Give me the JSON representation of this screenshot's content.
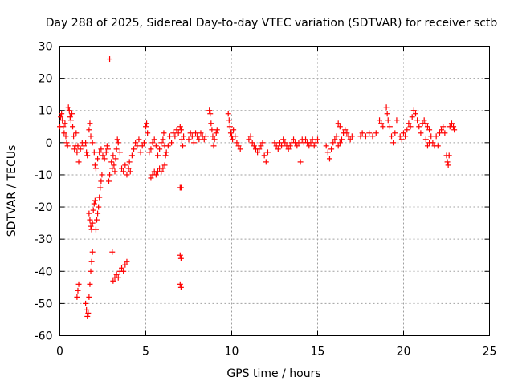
{
  "chart_data": {
    "type": "scatter",
    "title": "Day 288 of 2025, Sidereal Day-to-day VTEC variation (SDTVAR) for receiver sctb",
    "xlabel": "GPS time / hours",
    "ylabel": "SDTVAR / TECUs",
    "xlim": [
      0,
      25
    ],
    "ylim": [
      -60,
      30
    ],
    "xticks": [
      0,
      5,
      10,
      15,
      20,
      25
    ],
    "yticks": [
      -60,
      -50,
      -40,
      -30,
      -20,
      -10,
      0,
      10,
      20,
      30
    ],
    "xtick_labels": [
      "0",
      "5",
      "10",
      "15",
      "20",
      "25"
    ],
    "ytick_labels": [
      "-60",
      "-50",
      "-40",
      "-30",
      "-20",
      "-10",
      "0",
      "10",
      "20",
      "30"
    ],
    "grid": true,
    "marker": "+",
    "marker_color": "#ff0000",
    "series": [
      {
        "name": "SDTVAR",
        "points": [
          [
            0.0,
            5
          ],
          [
            0.05,
            8
          ],
          [
            0.1,
            9
          ],
          [
            0.15,
            7
          ],
          [
            0.2,
            5
          ],
          [
            0.25,
            3
          ],
          [
            0.3,
            6
          ],
          [
            0.35,
            2
          ],
          [
            0.4,
            0
          ],
          [
            0.45,
            -1
          ],
          [
            0.5,
            11
          ],
          [
            0.55,
            10
          ],
          [
            0.6,
            8
          ],
          [
            0.65,
            7
          ],
          [
            0.7,
            9
          ],
          [
            0.75,
            5
          ],
          [
            0.8,
            2
          ],
          [
            0.85,
            -2
          ],
          [
            0.9,
            -1
          ],
          [
            0.95,
            3
          ],
          [
            1.0,
            -3
          ],
          [
            1.05,
            -1
          ],
          [
            1.1,
            -6
          ],
          [
            1.2,
            -2
          ],
          [
            1.3,
            0
          ],
          [
            1.4,
            -1
          ],
          [
            1.5,
            0
          ],
          [
            1.55,
            -3
          ],
          [
            1.6,
            -4
          ],
          [
            1.0,
            -48
          ],
          [
            1.05,
            -46
          ],
          [
            1.1,
            -44
          ],
          [
            1.5,
            -50
          ],
          [
            1.55,
            -52
          ],
          [
            1.6,
            -54
          ],
          [
            1.65,
            -53
          ],
          [
            1.7,
            -48
          ],
          [
            1.75,
            -44
          ],
          [
            1.8,
            -40
          ],
          [
            1.85,
            -37
          ],
          [
            1.9,
            -34
          ],
          [
            1.7,
            -22
          ],
          [
            1.75,
            -24
          ],
          [
            1.8,
            -26
          ],
          [
            1.85,
            -27
          ],
          [
            1.9,
            -25
          ],
          [
            1.95,
            -21
          ],
          [
            2.0,
            -19
          ],
          [
            2.05,
            -18
          ],
          [
            2.1,
            -27
          ],
          [
            2.15,
            -24
          ],
          [
            2.2,
            -22
          ],
          [
            2.25,
            -20
          ],
          [
            2.3,
            -17
          ],
          [
            2.35,
            -14
          ],
          [
            2.4,
            -12
          ],
          [
            2.45,
            -10
          ],
          [
            1.7,
            4
          ],
          [
            1.75,
            6
          ],
          [
            1.8,
            2
          ],
          [
            1.9,
            0
          ],
          [
            2.0,
            -3
          ],
          [
            2.05,
            -7
          ],
          [
            2.1,
            -8
          ],
          [
            2.2,
            -5
          ],
          [
            2.3,
            -3
          ],
          [
            2.4,
            -2
          ],
          [
            2.5,
            -4
          ],
          [
            2.6,
            -5
          ],
          [
            2.7,
            -3
          ],
          [
            2.75,
            -1
          ],
          [
            2.8,
            -2
          ],
          [
            2.85,
            -12
          ],
          [
            2.9,
            -10
          ],
          [
            2.9,
            26
          ],
          [
            3.0,
            -6
          ],
          [
            3.05,
            -8
          ],
          [
            3.1,
            -4
          ],
          [
            3.15,
            -7
          ],
          [
            3.2,
            -9
          ],
          [
            3.25,
            -5
          ],
          [
            3.3,
            -2
          ],
          [
            3.35,
            1
          ],
          [
            3.4,
            0
          ],
          [
            3.5,
            -3
          ],
          [
            3.6,
            -8
          ],
          [
            3.7,
            -9
          ],
          [
            3.8,
            -7
          ],
          [
            3.9,
            -10
          ],
          [
            4.0,
            -8
          ],
          [
            4.05,
            -6
          ],
          [
            4.1,
            -9
          ],
          [
            3.05,
            -34
          ],
          [
            3.1,
            -43
          ],
          [
            3.2,
            -42
          ],
          [
            3.3,
            -41
          ],
          [
            3.4,
            -42
          ],
          [
            3.5,
            -40
          ],
          [
            3.6,
            -39
          ],
          [
            3.7,
            -40
          ],
          [
            3.8,
            -38
          ],
          [
            3.9,
            -37
          ],
          [
            4.2,
            -4
          ],
          [
            4.3,
            -2
          ],
          [
            4.4,
            0
          ],
          [
            4.5,
            -1
          ],
          [
            4.6,
            1
          ],
          [
            4.7,
            -3
          ],
          [
            4.8,
            -1
          ],
          [
            4.9,
            0
          ],
          [
            5.0,
            5
          ],
          [
            5.05,
            6
          ],
          [
            5.1,
            3
          ],
          [
            5.2,
            -3
          ],
          [
            5.3,
            -2
          ],
          [
            5.4,
            0
          ],
          [
            5.5,
            1
          ],
          [
            5.6,
            -1
          ],
          [
            5.7,
            -4
          ],
          [
            5.8,
            -2
          ],
          [
            5.9,
            0
          ],
          [
            5.3,
            -11
          ],
          [
            5.4,
            -10
          ],
          [
            5.5,
            -9
          ],
          [
            5.6,
            -10
          ],
          [
            5.7,
            -9
          ],
          [
            5.8,
            -8
          ],
          [
            5.9,
            -9
          ],
          [
            6.0,
            -8
          ],
          [
            6.1,
            -7
          ],
          [
            6.0,
            1
          ],
          [
            6.05,
            3
          ],
          [
            6.1,
            -1
          ],
          [
            6.15,
            -4
          ],
          [
            6.2,
            -3
          ],
          [
            6.3,
            -1
          ],
          [
            6.4,
            2
          ],
          [
            6.5,
            0
          ],
          [
            6.6,
            3
          ],
          [
            6.7,
            2
          ],
          [
            6.8,
            4
          ],
          [
            6.9,
            3
          ],
          [
            7.0,
            5
          ],
          [
            7.05,
            4
          ],
          [
            7.1,
            1
          ],
          [
            7.15,
            -1
          ],
          [
            7.2,
            2
          ],
          [
            7.0,
            -14
          ],
          [
            7.05,
            -14
          ],
          [
            7.0,
            -35
          ],
          [
            7.05,
            -36
          ],
          [
            7.0,
            -44
          ],
          [
            7.05,
            -45
          ],
          [
            7.5,
            1
          ],
          [
            7.6,
            3
          ],
          [
            7.7,
            2
          ],
          [
            7.8,
            0
          ],
          [
            7.9,
            3
          ],
          [
            8.0,
            2
          ],
          [
            8.1,
            1
          ],
          [
            8.2,
            3
          ],
          [
            8.3,
            2
          ],
          [
            8.4,
            1
          ],
          [
            8.5,
            2
          ],
          [
            8.7,
            10
          ],
          [
            8.75,
            9
          ],
          [
            8.8,
            6
          ],
          [
            8.85,
            4
          ],
          [
            8.9,
            2
          ],
          [
            8.95,
            -1
          ],
          [
            9.0,
            1
          ],
          [
            9.1,
            3
          ],
          [
            9.15,
            4
          ],
          [
            9.8,
            9
          ],
          [
            9.85,
            7
          ],
          [
            9.9,
            5
          ],
          [
            9.95,
            3
          ],
          [
            10.0,
            2
          ],
          [
            10.05,
            1
          ],
          [
            10.1,
            4
          ],
          [
            10.2,
            2
          ],
          [
            10.3,
            0
          ],
          [
            10.4,
            -1
          ],
          [
            10.5,
            -2
          ],
          [
            11.0,
            1
          ],
          [
            11.1,
            2
          ],
          [
            11.2,
            0
          ],
          [
            11.3,
            -1
          ],
          [
            11.4,
            -2
          ],
          [
            11.5,
            -3
          ],
          [
            11.6,
            -2
          ],
          [
            11.7,
            -1
          ],
          [
            11.8,
            0
          ],
          [
            11.9,
            -4
          ],
          [
            12.0,
            -6
          ],
          [
            12.1,
            -3
          ],
          [
            12.5,
            0
          ],
          [
            12.6,
            -1
          ],
          [
            12.7,
            -2
          ],
          [
            12.8,
            0
          ],
          [
            12.9,
            -1
          ],
          [
            13.0,
            1
          ],
          [
            13.1,
            0
          ],
          [
            13.2,
            -1
          ],
          [
            13.3,
            -2
          ],
          [
            13.4,
            -1
          ],
          [
            13.5,
            0
          ],
          [
            13.6,
            1
          ],
          [
            13.7,
            0
          ],
          [
            13.8,
            -1
          ],
          [
            13.9,
            0
          ],
          [
            14.0,
            -6
          ],
          [
            14.1,
            1
          ],
          [
            14.2,
            0
          ],
          [
            14.3,
            1
          ],
          [
            14.4,
            0
          ],
          [
            14.5,
            -1
          ],
          [
            14.6,
            0
          ],
          [
            14.7,
            1
          ],
          [
            14.8,
            -1
          ],
          [
            14.9,
            0
          ],
          [
            15.0,
            1
          ],
          [
            15.5,
            -1
          ],
          [
            15.6,
            -3
          ],
          [
            15.7,
            -5
          ],
          [
            15.8,
            -2
          ],
          [
            15.9,
            0
          ],
          [
            16.0,
            1
          ],
          [
            16.1,
            2
          ],
          [
            16.2,
            -1
          ],
          [
            16.3,
            0
          ],
          [
            16.4,
            1
          ],
          [
            16.5,
            3
          ],
          [
            16.6,
            4
          ],
          [
            16.7,
            3
          ],
          [
            16.8,
            2
          ],
          [
            16.9,
            1
          ],
          [
            17.0,
            2
          ],
          [
            16.2,
            6
          ],
          [
            16.3,
            5
          ],
          [
            17.5,
            2
          ],
          [
            17.6,
            3
          ],
          [
            17.8,
            2
          ],
          [
            18.0,
            3
          ],
          [
            18.2,
            2
          ],
          [
            18.4,
            3
          ],
          [
            18.6,
            7
          ],
          [
            18.7,
            6
          ],
          [
            18.8,
            5
          ],
          [
            19.0,
            11
          ],
          [
            19.05,
            9
          ],
          [
            19.1,
            7
          ],
          [
            19.2,
            5
          ],
          [
            19.3,
            2
          ],
          [
            19.4,
            0
          ],
          [
            19.5,
            3
          ],
          [
            19.6,
            7
          ],
          [
            19.8,
            2
          ],
          [
            19.9,
            1
          ],
          [
            20.0,
            3
          ],
          [
            20.1,
            2
          ],
          [
            20.2,
            4
          ],
          [
            20.3,
            6
          ],
          [
            20.4,
            5
          ],
          [
            20.5,
            8
          ],
          [
            20.6,
            10
          ],
          [
            20.7,
            9
          ],
          [
            20.8,
            7
          ],
          [
            20.9,
            5
          ],
          [
            21.0,
            3
          ],
          [
            21.1,
            6
          ],
          [
            21.2,
            7
          ],
          [
            21.3,
            6
          ],
          [
            21.4,
            5
          ],
          [
            21.5,
            4
          ],
          [
            21.3,
            1
          ],
          [
            21.4,
            -1
          ],
          [
            21.5,
            0
          ],
          [
            21.6,
            2
          ],
          [
            21.7,
            0
          ],
          [
            21.8,
            -1
          ],
          [
            21.9,
            2
          ],
          [
            22.0,
            -1
          ],
          [
            22.1,
            3
          ],
          [
            22.2,
            4
          ],
          [
            22.3,
            5
          ],
          [
            22.4,
            3
          ],
          [
            22.5,
            -4
          ],
          [
            22.55,
            -6
          ],
          [
            22.6,
            -7
          ],
          [
            22.65,
            -4
          ],
          [
            22.7,
            5
          ],
          [
            22.8,
            6
          ],
          [
            22.9,
            5
          ],
          [
            22.95,
            4
          ]
        ]
      }
    ]
  }
}
